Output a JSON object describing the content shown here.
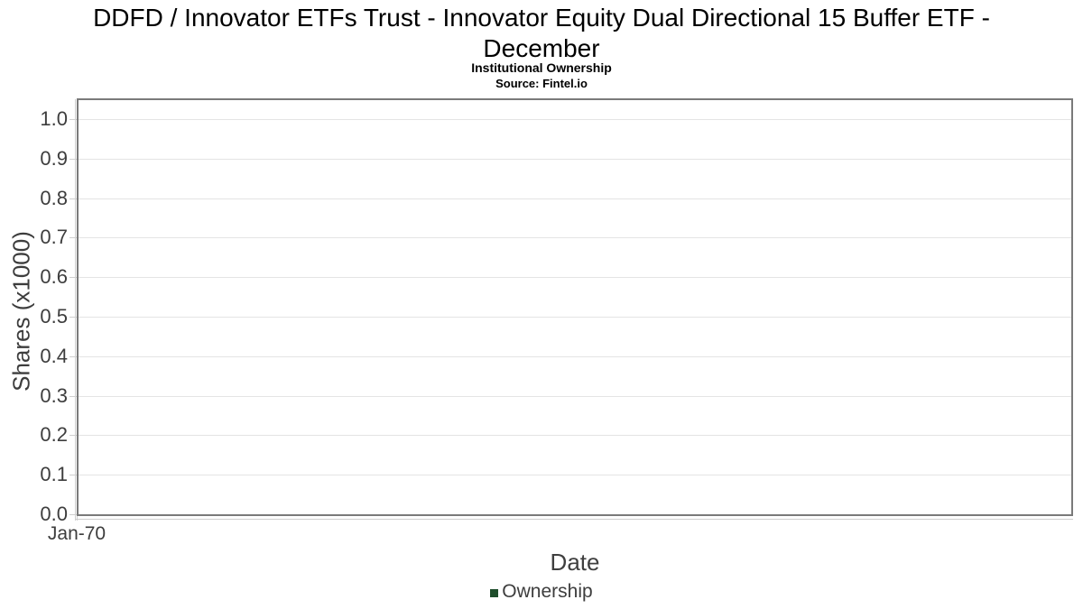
{
  "chart": {
    "title_lines": [
      "DDFD / Innovator ETFs Trust - Innovator Equity Dual Directional 15 Buffer ETF -",
      "December"
    ],
    "subtitle": "Institutional Ownership",
    "source": "Source: Fintel.io",
    "xlabel": "Date",
    "ylabel": "Shares (x1000)",
    "x_tick": "Jan-70",
    "legend_label": "Ownership",
    "legend_color": "#1e4d2b"
  },
  "colors": {
    "legend_swatch": "#1e4d2b",
    "grid_line": "#e4e4e4",
    "plot_border": "#7a7a7a",
    "axis_line": "#cfcfcf",
    "tick_text": "#3d3d3d",
    "title_text": "#000000"
  },
  "chart_data": {
    "type": "line",
    "title": "DDFD / Innovator ETFs Trust - Innovator Equity Dual Directional 15 Buffer ETF - December",
    "subtitle": "Institutional Ownership",
    "source": "Source: Fintel.io",
    "xlabel": "Date",
    "ylabel": "Shares (x1000)",
    "x_tick_labels": [
      "Jan-70"
    ],
    "y_ticks": [
      0.0,
      0.1,
      0.2,
      0.3,
      0.4,
      0.5,
      0.6,
      0.7,
      0.8,
      0.9,
      1.0
    ],
    "ylim": [
      0.0,
      1.05
    ],
    "grid": true,
    "legend_position": "bottom",
    "series": [
      {
        "name": "Ownership",
        "color": "#1e4d2b",
        "x": [],
        "values": []
      }
    ]
  }
}
